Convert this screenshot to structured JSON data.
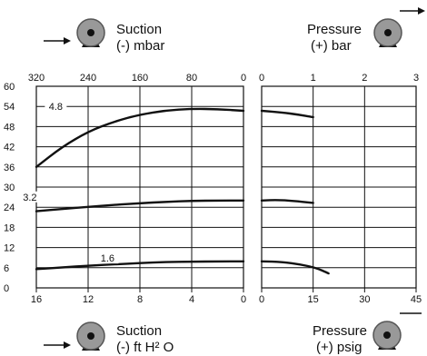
{
  "indicators": {
    "top_left": {
      "line1": "Suction",
      "line2": "(-) mbar"
    },
    "top_right": {
      "line1": "Pressure",
      "line2": "(+) bar"
    },
    "bottom_left": {
      "line1": "Suction",
      "line2": "(-) ft H² O"
    },
    "bottom_right": {
      "line1": "Pressure",
      "line2": "(+) psig"
    }
  },
  "icons": [
    "pump-icon",
    "arrow-icon"
  ],
  "chart_data": {
    "type": "line",
    "y_axis": {
      "ticks": [
        "0",
        "6",
        "12",
        "18",
        "24",
        "30",
        "36",
        "42",
        "48",
        "54",
        "60"
      ],
      "ylim": [
        0,
        60
      ]
    },
    "panels": [
      {
        "name": "suction",
        "top_axis": {
          "unit": "(-) mbar",
          "ticks": [
            "320",
            "240",
            "160",
            "80",
            "0"
          ],
          "range": [
            320,
            0
          ]
        },
        "bottom_axis": {
          "unit": "(-) ft H² O",
          "ticks": [
            "16",
            "12",
            "8",
            "4",
            "0"
          ],
          "range": [
            16,
            0
          ]
        },
        "series": [
          {
            "name": "4.8",
            "label_at": [
              290,
              53
            ],
            "points": [
              [
                320,
                36
              ],
              [
                280,
                42
              ],
              [
                240,
                46.5
              ],
              [
                200,
                49.5
              ],
              [
                160,
                51.6
              ],
              [
                120,
                52.8
              ],
              [
                80,
                53.3
              ],
              [
                40,
                53.2
              ],
              [
                0,
                52.7
              ]
            ]
          },
          {
            "name": "3.2",
            "label_at": [
              330,
              26
            ],
            "points": [
              [
                320,
                22.8
              ],
              [
                280,
                23.5
              ],
              [
                240,
                24.1
              ],
              [
                200,
                24.7
              ],
              [
                160,
                25.2
              ],
              [
                120,
                25.6
              ],
              [
                80,
                25.9
              ],
              [
                40,
                26.0
              ],
              [
                0,
                26.0
              ]
            ]
          },
          {
            "name": "1.6",
            "label_at": [
              210,
              7.8
            ],
            "points": [
              [
                320,
                5.6
              ],
              [
                280,
                6.1
              ],
              [
                240,
                6.6
              ],
              [
                200,
                7.0
              ],
              [
                160,
                7.4
              ],
              [
                120,
                7.7
              ],
              [
                80,
                7.8
              ],
              [
                40,
                7.9
              ],
              [
                0,
                7.9
              ]
            ]
          }
        ]
      },
      {
        "name": "pressure",
        "top_axis": {
          "unit": "(+) bar",
          "ticks": [
            "0",
            "1",
            "2",
            "3"
          ],
          "range": [
            0,
            3
          ]
        },
        "bottom_axis": {
          "unit": "(+) psig",
          "ticks": [
            "0",
            "15",
            "30",
            "45"
          ],
          "range": [
            0,
            45
          ]
        },
        "series": [
          {
            "name": "4.8",
            "points": [
              [
                0,
                52.7
              ],
              [
                0.4,
                52.2
              ],
              [
                0.7,
                51.6
              ],
              [
                1.0,
                50.8
              ]
            ]
          },
          {
            "name": "3.2",
            "points": [
              [
                0,
                26.0
              ],
              [
                0.3,
                26.2
              ],
              [
                0.6,
                25.9
              ],
              [
                1.0,
                25.3
              ]
            ]
          },
          {
            "name": "1.6",
            "points": [
              [
                0,
                7.9
              ],
              [
                0.4,
                7.7
              ],
              [
                0.75,
                7.0
              ],
              [
                1.05,
                6.0
              ],
              [
                1.3,
                4.3
              ]
            ]
          }
        ]
      }
    ],
    "grid": true,
    "legend": "none"
  }
}
